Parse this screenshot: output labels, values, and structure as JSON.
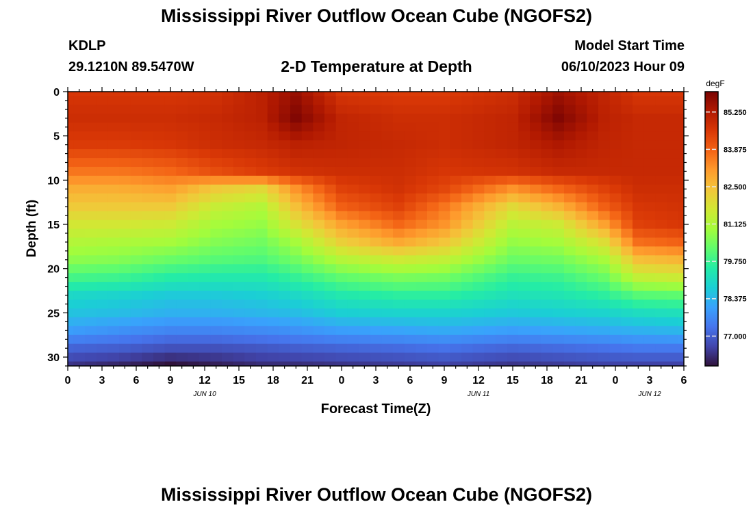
{
  "title": "Mississippi River Outflow Ocean Cube (NGOFS2)",
  "footer_title": "Mississippi River Outflow Ocean Cube (NGOFS2)",
  "station": {
    "id": "KDLP",
    "coords": "29.1210N  89.5470W"
  },
  "model_start": {
    "label": "Model Start Time",
    "value": "06/10/2023 Hour 09"
  },
  "chart_data": {
    "type": "heatmap",
    "title": "2-D Temperature at Depth",
    "xlabel": "Forecast Time(Z)",
    "ylabel": "Depth (ft)",
    "x_tick_labels": [
      "0",
      "3",
      "6",
      "9",
      "12",
      "15",
      "18",
      "21",
      "0",
      "3",
      "6",
      "9",
      "12",
      "15",
      "18",
      "21",
      "0",
      "3",
      "6"
    ],
    "x_hours": [
      0,
      54
    ],
    "date_labels": [
      {
        "text": "JUN 10",
        "hour": 12
      },
      {
        "text": "JUN 11",
        "hour": 36
      },
      {
        "text": "JUN 12",
        "hour": 51
      }
    ],
    "y_ticks": [
      0,
      5,
      10,
      15,
      20,
      25,
      30
    ],
    "ylim": [
      0,
      31
    ],
    "colorbar": {
      "unit": "degF",
      "ticks": [
        "85.250",
        "83.875",
        "82.500",
        "81.125",
        "79.750",
        "78.375",
        "77.000"
      ],
      "range": [
        75.9,
        86.0
      ],
      "colormap": [
        "#30123b",
        "#4145ab",
        "#4675ed",
        "#39a2fc",
        "#1bcfd4",
        "#24eca6",
        "#61fc6c",
        "#a4fc3b",
        "#d1e834",
        "#f3c63a",
        "#fe9b2d",
        "#f36315",
        "#d93806",
        "#b11901",
        "#7a0403"
      ]
    },
    "series": [
      {
        "x": [
          0,
          4.5,
          9,
          13,
          17,
          20,
          24,
          29,
          33,
          39,
          43,
          47,
          50,
          54
        ],
        "values": [
          {
            "y": 0,
            "vals": [
              84.6,
              84.6,
              84.6,
              84.7,
              85.1,
              85.6,
              84.6,
              84.5,
              84.5,
              84.8,
              85.5,
              85.0,
              84.6,
              84.6
            ]
          },
          {
            "y": 3,
            "vals": [
              84.8,
              84.8,
              84.8,
              84.9,
              85.1,
              85.9,
              85.0,
              84.8,
              84.8,
              85.0,
              85.9,
              85.1,
              84.9,
              84.9
            ]
          },
          {
            "y": 6,
            "vals": [
              84.5,
              84.5,
              84.6,
              84.8,
              84.9,
              85.1,
              85.0,
              84.9,
              84.8,
              85.0,
              85.3,
              85.0,
              84.9,
              84.9
            ]
          },
          {
            "y": 9,
            "vals": [
              83.6,
              83.6,
              83.8,
              84.2,
              84.5,
              84.7,
              84.8,
              84.8,
              84.6,
              84.7,
              84.9,
              84.9,
              84.9,
              84.9
            ]
          },
          {
            "y": 11,
            "vals": [
              82.8,
              82.8,
              83.0,
              82.3,
              82.0,
              83.2,
              84.4,
              84.7,
              84.3,
              83.2,
              83.8,
              84.4,
              84.8,
              84.8
            ]
          },
          {
            "y": 13,
            "vals": [
              82.3,
              82.3,
              82.3,
              81.5,
              81.2,
              82.5,
              83.9,
              84.4,
              83.6,
              82.0,
              82.7,
              83.9,
              84.6,
              84.7
            ]
          },
          {
            "y": 15,
            "vals": [
              81.7,
              81.7,
              81.6,
              81.0,
              80.8,
              81.8,
              83.0,
              83.8,
              83.2,
              81.3,
              81.6,
              83.0,
              84.4,
              84.6
            ]
          },
          {
            "y": 17,
            "vals": [
              81.2,
              81.1,
              81.0,
              80.6,
              80.4,
              81.0,
              82.2,
              82.9,
              82.4,
              80.8,
              81.0,
              81.9,
              83.7,
              83.9
            ]
          },
          {
            "y": 19,
            "vals": [
              80.7,
              80.6,
              80.3,
              80.1,
              80.0,
              80.4,
              81.2,
              81.6,
              81.4,
              80.3,
              80.4,
              81.0,
              82.5,
              82.7
            ]
          },
          {
            "y": 21,
            "vals": [
              79.9,
              79.8,
              79.5,
              79.4,
              79.4,
              79.7,
              80.2,
              80.5,
              80.4,
              79.7,
              79.8,
              80.3,
              81.4,
              81.6
            ]
          },
          {
            "y": 23,
            "vals": [
              79.0,
              78.9,
              78.7,
              78.7,
              78.8,
              79.0,
              79.4,
              79.6,
              79.6,
              79.2,
              79.3,
              79.6,
              80.1,
              80.2
            ]
          },
          {
            "y": 25,
            "vals": [
              78.6,
              78.5,
              78.3,
              78.3,
              78.4,
              78.5,
              78.8,
              78.9,
              78.9,
              78.7,
              78.8,
              78.9,
              79.1,
              79.2
            ]
          },
          {
            "y": 27,
            "vals": [
              78.0,
              77.8,
              77.6,
              77.6,
              77.7,
              77.8,
              78.0,
              78.1,
              78.2,
              78.0,
              78.1,
              78.2,
              78.3,
              78.4
            ]
          },
          {
            "y": 29,
            "vals": [
              77.1,
              77.0,
              76.8,
              76.8,
              76.9,
              77.0,
              77.1,
              77.2,
              77.3,
              77.1,
              77.2,
              77.3,
              77.4,
              77.4
            ]
          },
          {
            "y": 31,
            "vals": [
              76.4,
              76.2,
              75.9,
              76.1,
              76.3,
              76.3,
              76.4,
              76.5,
              76.6,
              76.4,
              76.5,
              76.6,
              76.6,
              76.6
            ]
          }
        ]
      }
    ],
    "grid": false
  }
}
